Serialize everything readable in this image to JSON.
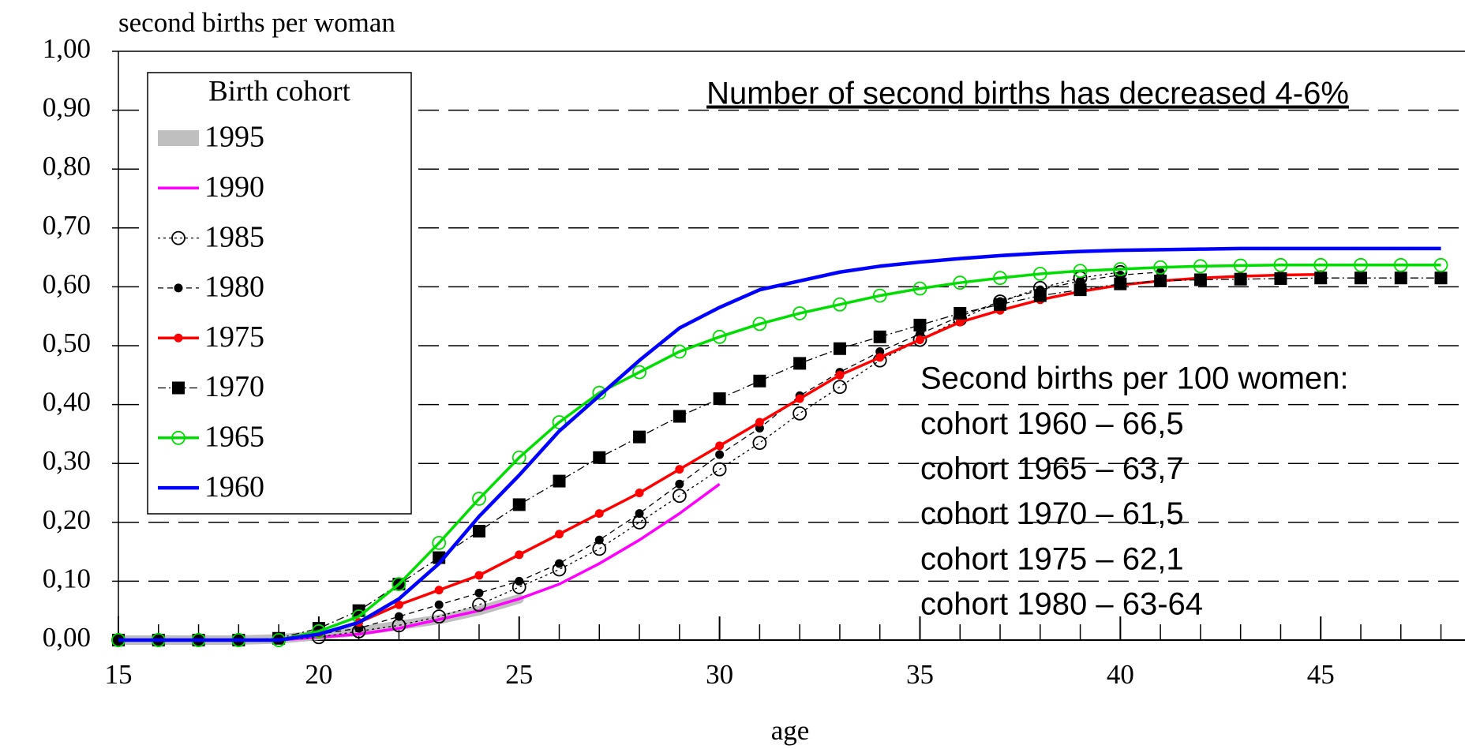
{
  "chart_data": {
    "type": "line",
    "y_label": "second births per woman",
    "x_label": "age",
    "legend_title": "Birth cohort",
    "annotation": "Number of second births has decreased 4-6%",
    "text_block": [
      "Second births per 100 women:",
      "cohort 1960 –  66,5",
      "cohort 1965 –  63,7",
      "cohort 1970 –  61,5",
      "cohort 1975 –  62,1",
      "cohort 1980 –  63-64"
    ],
    "x": [
      15,
      16,
      17,
      18,
      19,
      20,
      21,
      22,
      23,
      24,
      25,
      26,
      27,
      28,
      29,
      30,
      31,
      32,
      33,
      34,
      35,
      36,
      37,
      38,
      39,
      40,
      41,
      42,
      43,
      44,
      45,
      46,
      47,
      48
    ],
    "xlim": [
      15,
      48.6
    ],
    "xticks": [
      15,
      20,
      25,
      30,
      35,
      40,
      45
    ],
    "ylim": [
      0,
      1
    ],
    "yticks": [
      {
        "value": 0,
        "label": "0,00"
      },
      {
        "value": 0.1,
        "label": "0,10"
      },
      {
        "value": 0.2,
        "label": "0,20"
      },
      {
        "value": 0.3,
        "label": "0,30"
      },
      {
        "value": 0.4,
        "label": "0,40"
      },
      {
        "value": 0.5,
        "label": "0,50"
      },
      {
        "value": 0.6,
        "label": "0,60"
      },
      {
        "value": 0.7,
        "label": "0,70"
      },
      {
        "value": 0.8,
        "label": "0,80"
      },
      {
        "value": 0.9,
        "label": "0,90"
      },
      {
        "value": 1,
        "label": "1,00"
      }
    ],
    "grid": true,
    "legend": "upper left",
    "series": [
      {
        "name": "1995",
        "color": "#bfbfbf",
        "style": "band",
        "marker": "none",
        "values": [
          0,
          0,
          0,
          0,
          0.002,
          0.008,
          0.015,
          0.025,
          0.035,
          0.05,
          0.07,
          null,
          null,
          null,
          null,
          null,
          null,
          null,
          null,
          null,
          null,
          null,
          null,
          null,
          null,
          null,
          null,
          null,
          null,
          null,
          null,
          null,
          null,
          null
        ]
      },
      {
        "name": "1990",
        "color": "#ff00ff",
        "style": "solid",
        "marker": "none",
        "values": [
          0,
          0,
          0,
          0,
          0,
          0.005,
          0.01,
          0.02,
          0.035,
          0.05,
          0.07,
          0.095,
          0.13,
          0.17,
          0.215,
          0.265,
          null,
          null,
          null,
          null,
          null,
          null,
          null,
          null,
          null,
          null,
          null,
          null,
          null,
          null,
          null,
          null,
          null,
          null
        ]
      },
      {
        "name": "1985",
        "color": "#000000",
        "style": "dotted",
        "marker": "open-circle",
        "values": [
          0,
          0,
          0,
          0,
          0,
          0.005,
          0.015,
          0.025,
          0.04,
          0.06,
          0.09,
          0.12,
          0.155,
          0.2,
          0.245,
          0.29,
          0.335,
          0.385,
          0.43,
          0.475,
          0.51,
          0.545,
          0.575,
          0.598,
          0.615,
          0.625,
          null,
          null,
          null,
          null,
          null,
          null,
          null,
          null
        ]
      },
      {
        "name": "1980",
        "color": "#000000",
        "style": "dashed",
        "marker": "dot",
        "values": [
          0,
          0,
          0,
          0,
          0,
          0.01,
          0.02,
          0.04,
          0.06,
          0.08,
          0.1,
          0.13,
          0.17,
          0.215,
          0.265,
          0.315,
          0.36,
          0.415,
          0.455,
          0.49,
          0.52,
          0.55,
          0.575,
          0.595,
          0.61,
          0.62,
          0.625,
          null,
          null,
          null,
          null,
          null,
          null,
          null
        ]
      },
      {
        "name": "1975",
        "color": "#ff0000",
        "style": "solid",
        "marker": "dot",
        "values": [
          0,
          0,
          0,
          0,
          0,
          0.01,
          0.03,
          0.06,
          0.085,
          0.11,
          0.145,
          0.18,
          0.215,
          0.25,
          0.29,
          0.33,
          0.37,
          0.41,
          0.45,
          0.48,
          0.51,
          0.54,
          0.56,
          0.578,
          0.592,
          0.603,
          0.61,
          0.615,
          0.618,
          0.62,
          0.621,
          null,
          null,
          null
        ]
      },
      {
        "name": "1970",
        "color": "#000000",
        "style": "dashdot",
        "marker": "square",
        "values": [
          0,
          0,
          0,
          0,
          0.003,
          0.02,
          0.05,
          0.095,
          0.14,
          0.185,
          0.23,
          0.27,
          0.31,
          0.345,
          0.38,
          0.41,
          0.44,
          0.47,
          0.495,
          0.515,
          0.535,
          0.555,
          0.57,
          0.585,
          0.595,
          0.605,
          0.61,
          0.612,
          0.613,
          0.614,
          0.615,
          0.615,
          0.615,
          0.615
        ]
      },
      {
        "name": "1965",
        "color": "#00dd00",
        "style": "solid",
        "marker": "open-circle",
        "values": [
          0,
          0,
          0,
          0,
          0,
          0.015,
          0.04,
          0.095,
          0.165,
          0.24,
          0.31,
          0.37,
          0.42,
          0.455,
          0.49,
          0.515,
          0.537,
          0.555,
          0.57,
          0.585,
          0.597,
          0.607,
          0.615,
          0.622,
          0.627,
          0.63,
          0.633,
          0.635,
          0.636,
          0.637,
          0.637,
          0.637,
          0.637,
          0.637
        ]
      },
      {
        "name": "1960",
        "color": "#0000ff",
        "style": "thick",
        "marker": "none",
        "values": [
          0,
          0,
          0,
          0,
          0,
          0.01,
          0.03,
          0.07,
          0.13,
          0.21,
          0.28,
          0.355,
          0.415,
          0.475,
          0.53,
          0.565,
          0.595,
          0.61,
          0.625,
          0.635,
          0.642,
          0.648,
          0.653,
          0.657,
          0.66,
          0.662,
          0.663,
          0.664,
          0.665,
          0.665,
          0.665,
          0.665,
          0.665,
          0.665
        ]
      }
    ]
  }
}
